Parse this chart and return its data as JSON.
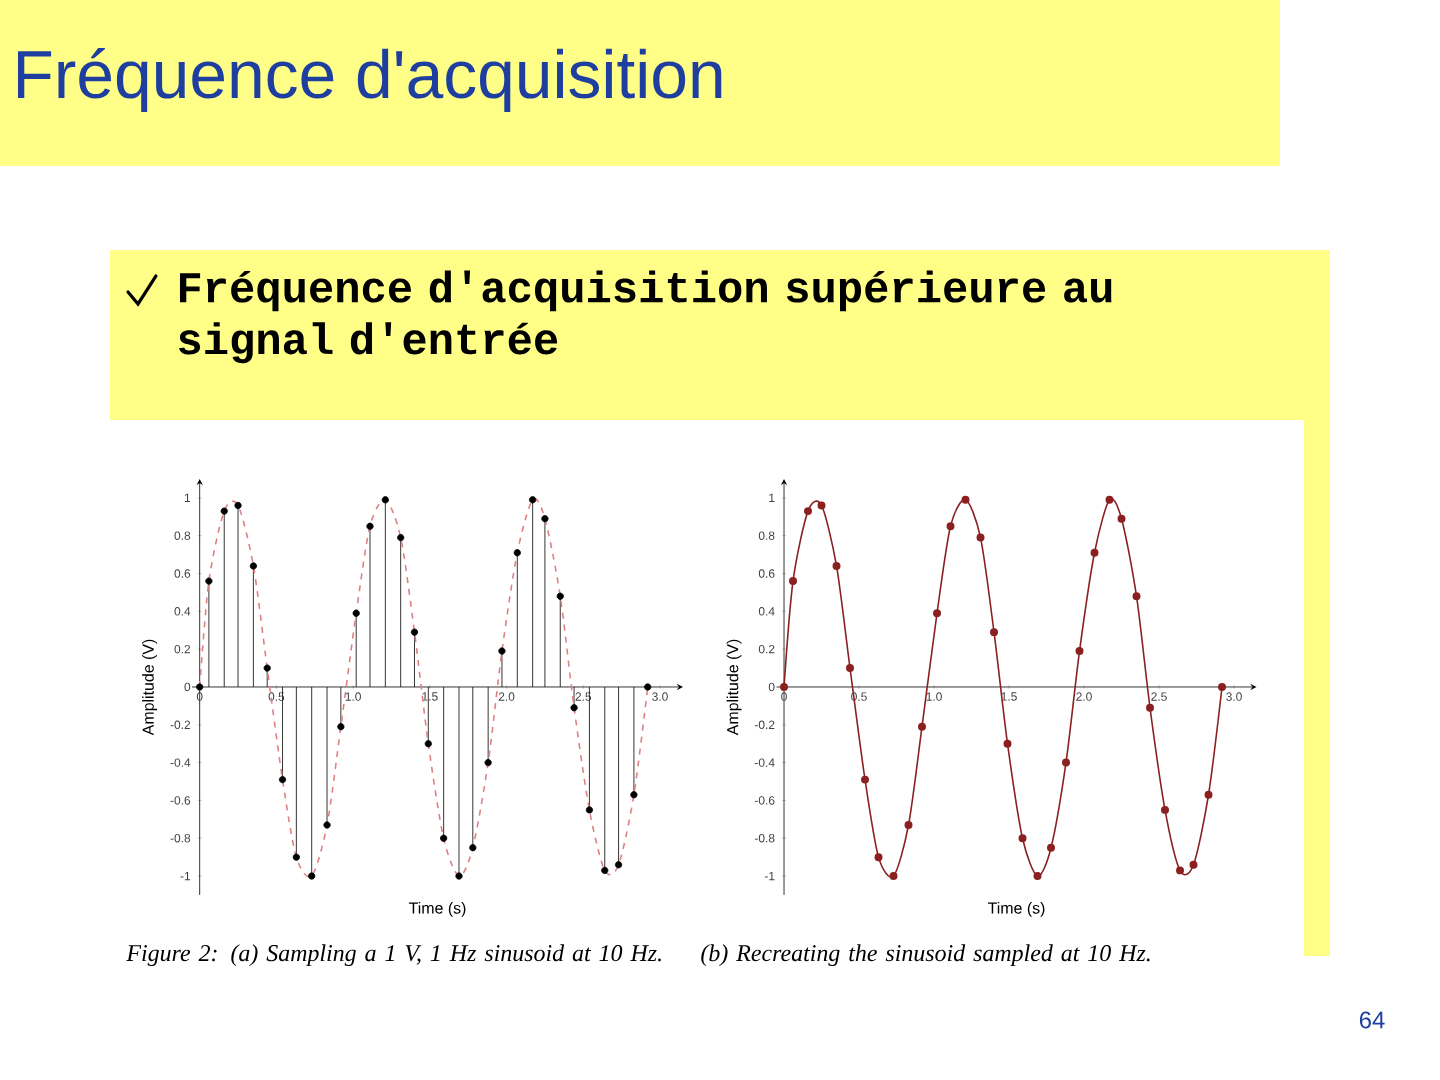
{
  "chart_data": [
    {
      "type": "lollipop",
      "title": "Fréquence d'acquisition",
      "subtitle": "Fréquence d'acquisition supérieure au signal d'entrée",
      "xlabel": "Time (s)",
      "ylabel": "Amplitude (V)",
      "xlim": [
        -0.05,
        3.15
      ],
      "ylim": [
        -1.1,
        1.1
      ],
      "xticks": [
        0,
        0.5,
        {
          "value": 1,
          "label": "1.0"
        },
        1.5,
        {
          "value": 2,
          "label": "2.0"
        },
        2.5,
        {
          "value": 3,
          "label": "3.0"
        }
      ],
      "yticks": [
        -1,
        -0.8,
        -0.6,
        -0.4,
        -0.2,
        0,
        0.2,
        0.4,
        0.6,
        0.8,
        1
      ],
      "annotations": [
        "Figure 2: (a) Sampling a 1 V, 1 Hz sinusoid at 10 Hz."
      ],
      "series": [
        {
          "color": "#000000",
          "marker": "circle",
          "x": [
            0,
            0.06,
            0.16,
            0.25,
            0.35,
            0.44,
            0.54,
            0.63,
            0.73,
            0.83,
            0.92,
            1.02,
            1.11,
            1.21,
            1.31,
            1.4,
            1.49,
            1.59,
            1.69,
            1.78,
            1.88,
            1.97,
            2.07,
            2.17,
            2.25,
            2.35,
            2.44,
            2.54,
            2.64,
            2.73,
            2.83,
            2.92
          ],
          "values": [
            0,
            0.56,
            0.93,
            0.96,
            0.64,
            0.1,
            -0.49,
            -0.9,
            -1.0,
            -0.73,
            -0.21,
            0.39,
            0.85,
            0.99,
            0.79,
            0.29,
            -0.3,
            -0.8,
            -1.0,
            -0.85,
            -0.4,
            0.19,
            0.71,
            0.99,
            0.89,
            0.48,
            -0.11,
            -0.65,
            -0.97,
            -0.94,
            -0.57,
            0
          ]
        },
        {
          "type": "line",
          "color": "#e08080",
          "marker": "none",
          "line_style": "dashed",
          "x": [
            0,
            0.06,
            0.16,
            0.25,
            0.35,
            0.44,
            0.54,
            0.63,
            0.73,
            0.83,
            0.92,
            1.02,
            1.11,
            1.21,
            1.31,
            1.4,
            1.49,
            1.59,
            1.69,
            1.78,
            1.88,
            1.97,
            2.07,
            2.17,
            2.25,
            2.35,
            2.44,
            2.54,
            2.64,
            2.73,
            2.83,
            2.92
          ],
          "values": [
            0,
            0.56,
            0.93,
            0.96,
            0.64,
            0.1,
            -0.49,
            -0.9,
            -1.0,
            -0.73,
            -0.21,
            0.39,
            0.85,
            0.99,
            0.79,
            0.29,
            -0.3,
            -0.8,
            -1.0,
            -0.85,
            -0.4,
            0.19,
            0.71,
            0.99,
            0.89,
            0.48,
            -0.11,
            -0.65,
            -0.97,
            -0.94,
            -0.57,
            0
          ]
        }
      ]
    },
    {
      "type": "line",
      "xlabel": "Time (s)",
      "ylabel": "Amplitude (V)",
      "xlim": [
        -0.05,
        3.15
      ],
      "ylim": [
        -1.1,
        1.1
      ],
      "xticks": [
        0,
        0.5,
        {
          "value": 1,
          "label": "1.0"
        },
        1.5,
        {
          "value": 2,
          "label": "2.0"
        },
        2.5,
        {
          "value": 3,
          "label": "3.0"
        }
      ],
      "yticks": [
        -1,
        -0.8,
        -0.6,
        -0.4,
        -0.2,
        0,
        0.2,
        0.4,
        0.6,
        0.8,
        1
      ],
      "annotations": [
        "(b) Recreating the sinusoid sampled at 10 Hz.",
        "64"
      ],
      "series": [
        {
          "color": "#8b2020",
          "marker": "circle",
          "x": [
            0,
            0.06,
            0.16,
            0.25,
            0.35,
            0.44,
            0.54,
            0.63,
            0.73,
            0.83,
            0.92,
            1.02,
            1.11,
            1.21,
            1.31,
            1.4,
            1.49,
            1.59,
            1.69,
            1.78,
            1.88,
            1.97,
            2.07,
            2.17,
            2.25,
            2.35,
            2.44,
            2.54,
            2.64,
            2.73,
            2.83,
            2.92
          ],
          "values": [
            0,
            0.56,
            0.93,
            0.96,
            0.64,
            0.1,
            -0.49,
            -0.9,
            -1.0,
            -0.73,
            -0.21,
            0.39,
            0.85,
            0.99,
            0.79,
            0.29,
            -0.3,
            -0.8,
            -1.0,
            -0.85,
            -0.4,
            0.19,
            0.71,
            0.99,
            0.89,
            0.48,
            -0.11,
            -0.65,
            -0.97,
            -0.94,
            -0.57,
            0
          ]
        }
      ]
    }
  ]
}
